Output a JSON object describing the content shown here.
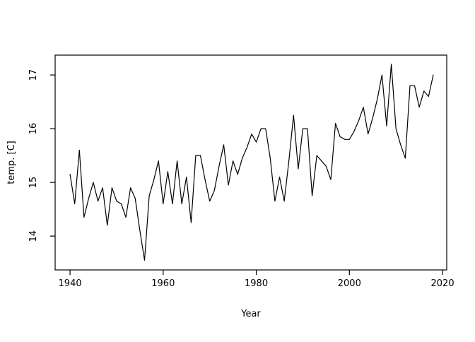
{
  "chart_data": {
    "type": "line",
    "title": "",
    "xlabel": "Year",
    "ylabel": "temp. [C]",
    "x": [
      1940,
      1941,
      1942,
      1943,
      1944,
      1945,
      1946,
      1947,
      1948,
      1949,
      1950,
      1951,
      1952,
      1953,
      1954,
      1955,
      1956,
      1957,
      1958,
      1959,
      1960,
      1961,
      1962,
      1963,
      1964,
      1965,
      1966,
      1967,
      1968,
      1969,
      1970,
      1971,
      1972,
      1973,
      1974,
      1975,
      1976,
      1977,
      1978,
      1979,
      1980,
      1981,
      1982,
      1983,
      1984,
      1985,
      1986,
      1987,
      1988,
      1989,
      1990,
      1991,
      1992,
      1993,
      1994,
      1995,
      1996,
      1997,
      1998,
      1999,
      2000,
      2001,
      2002,
      2003,
      2004,
      2005,
      2006,
      2007,
      2008,
      2009,
      2010,
      2011,
      2012,
      2013,
      2014,
      2015,
      2016,
      2017,
      2018
    ],
    "values": [
      15.15,
      14.6,
      15.6,
      14.35,
      14.7,
      15.0,
      14.65,
      14.9,
      14.2,
      14.9,
      14.65,
      14.6,
      14.35,
      14.9,
      14.7,
      14.1,
      13.55,
      14.75,
      15.05,
      15.4,
      14.6,
      15.2,
      14.6,
      15.4,
      14.6,
      15.1,
      14.25,
      15.5,
      15.5,
      15.05,
      14.65,
      14.85,
      15.3,
      15.7,
      14.95,
      15.4,
      15.15,
      15.45,
      15.65,
      15.9,
      15.75,
      16.0,
      16.0,
      15.45,
      14.65,
      15.1,
      14.65,
      15.4,
      16.25,
      15.25,
      16.0,
      16.0,
      14.75,
      15.5,
      15.4,
      15.3,
      15.05,
      16.1,
      15.85,
      15.8,
      15.8,
      15.95,
      16.15,
      16.4,
      15.9,
      16.2,
      16.55,
      17.0,
      16.05,
      17.2,
      16.0,
      15.7,
      15.45,
      16.8,
      16.8,
      16.4,
      16.7,
      16.6,
      17.0
    ],
    "xticks": {
      "values": [
        1940,
        1960,
        1980,
        2000,
        2020
      ],
      "labels": [
        "1940",
        "1960",
        "1980",
        "2000",
        "2020"
      ]
    },
    "yticks": {
      "values": [
        14,
        15,
        16,
        17
      ],
      "labels": [
        "14",
        "15",
        "16",
        "17"
      ]
    },
    "xlim": [
      1936.8,
      2020.9
    ],
    "ylim": [
      13.37,
      17.37
    ],
    "grid": false,
    "legend": null,
    "line_color": "#000000",
    "axis_color": "#000000",
    "background": "#ffffff"
  }
}
